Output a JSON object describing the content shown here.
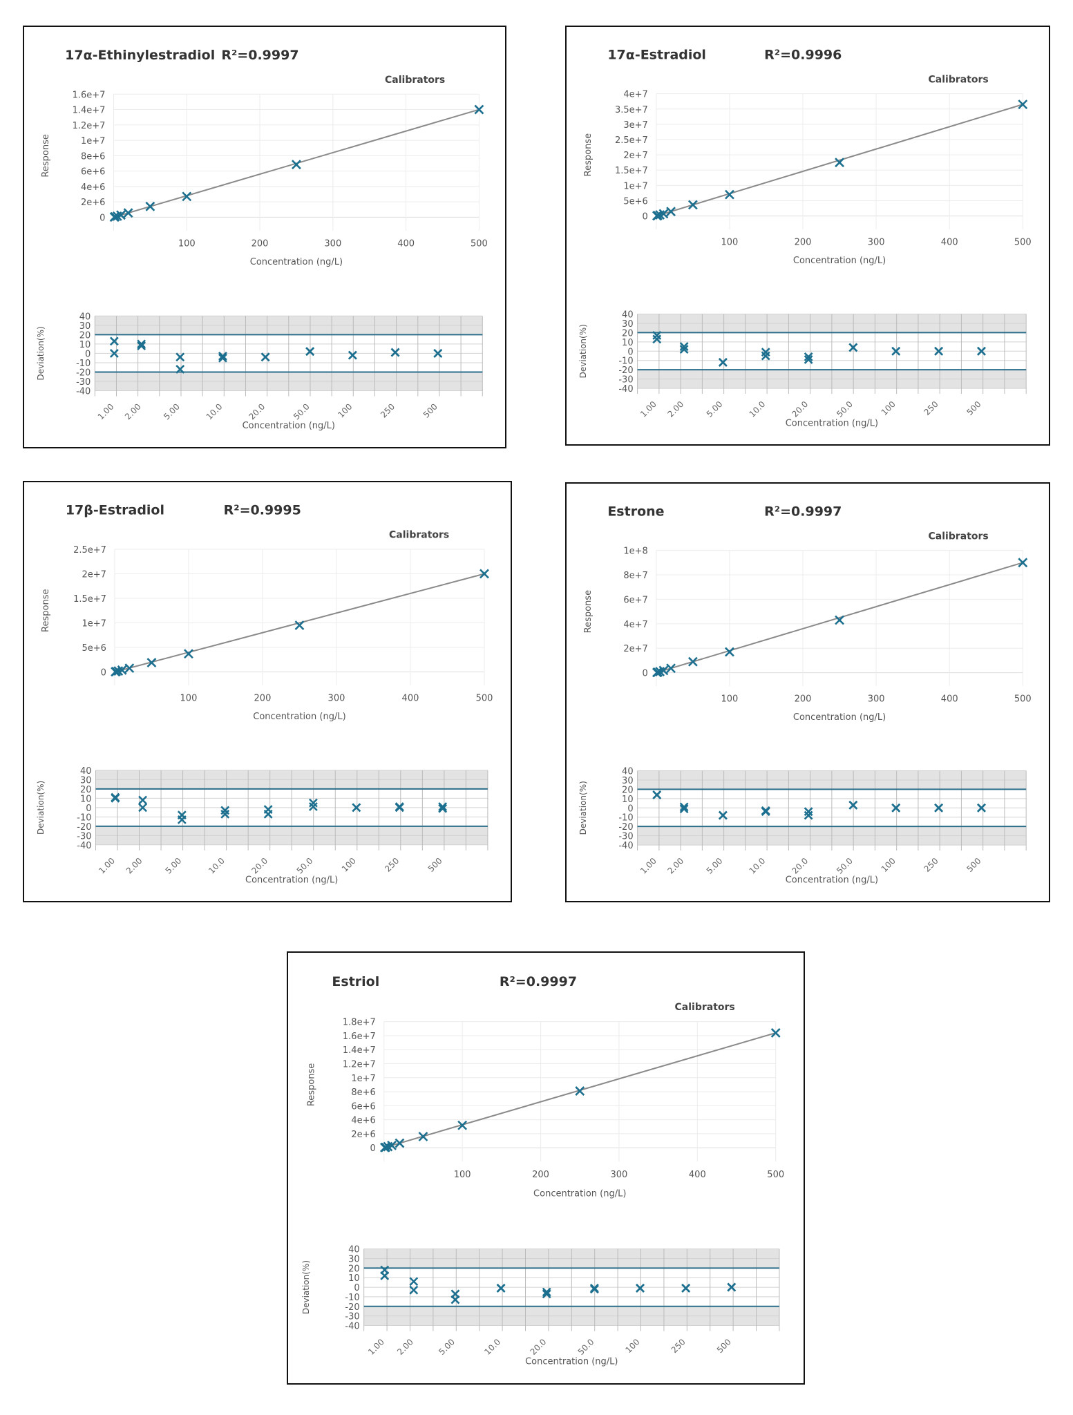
{
  "colors": {
    "marker": "#1c6f8f",
    "fit_line": "#8a8a8a",
    "limit_line": "#2b6e8a",
    "shade": "#e3e3e3",
    "grid": "#ececec"
  },
  "chart_data": [
    {
      "type": "scatter",
      "title": "17α-Ethinylestradiol",
      "r2": "R²=0.9997",
      "legend": "Calibrators",
      "ylabel": "Response",
      "xlabel": "Concentration (ng/L)",
      "ylim": [
        0,
        16000000
      ],
      "yticks": [
        "0",
        "2e+6",
        "4e+6",
        "6e+6",
        "8e+6",
        "1e+7",
        "1.2e+7",
        "1.4e+7",
        "1.6e+7"
      ],
      "xlim": [
        0,
        500
      ],
      "xticks": [
        "100",
        "200",
        "300",
        "400",
        "500"
      ],
      "x": [
        1,
        2,
        5,
        10,
        20,
        50,
        100,
        250,
        500
      ],
      "y": [
        28000,
        56000,
        140000,
        280000,
        560000,
        1400000,
        2700000,
        6850000,
        14000000
      ],
      "deviation": {
        "ylabel": "Deviation(%)",
        "xlabel": "Concentration (ng/L)",
        "ylim": [
          -40,
          40
        ],
        "yticks": [
          "40",
          "30",
          "20",
          "10",
          "0",
          "-10",
          "-20",
          "-30",
          "-40"
        ],
        "limits": [
          20,
          -20
        ],
        "categories": [
          "1.00",
          "2.00",
          "5.00",
          "10.0",
          "20.0",
          "50.0",
          "100",
          "250",
          "500"
        ],
        "values": [
          [
            13,
            0
          ],
          [
            10,
            8
          ],
          [
            -4,
            -17
          ],
          [
            -3,
            -5
          ],
          [
            -4,
            -4
          ],
          [
            2,
            2
          ],
          [
            -2,
            -2
          ],
          [
            1,
            1
          ],
          [
            0,
            0
          ]
        ]
      }
    },
    {
      "type": "scatter",
      "title": "17α-Estradiol",
      "r2": "R²=0.9996",
      "legend": "Calibrators",
      "ylabel": "Response",
      "xlabel": "Concentration (ng/L)",
      "ylim": [
        0,
        40000000
      ],
      "yticks": [
        "0",
        "5e+6",
        "1e+7",
        "1.5e+7",
        "2e+7",
        "2.5e+7",
        "3e+7",
        "3.5e+7",
        "4e+7"
      ],
      "xlim": [
        0,
        500
      ],
      "xticks": [
        "100",
        "200",
        "300",
        "400",
        "500"
      ],
      "x": [
        1,
        2,
        5,
        10,
        20,
        50,
        100,
        250,
        500
      ],
      "y": [
        73000,
        146000,
        365000,
        730000,
        1460000,
        3650000,
        7000000,
        17500000,
        36500000
      ],
      "deviation": {
        "ylabel": "Deviation(%)",
        "xlabel": "Concentration (ng/L)",
        "ylim": [
          -40,
          40
        ],
        "yticks": [
          "40",
          "30",
          "20",
          "10",
          "0",
          "-10",
          "-20",
          "-30",
          "-40"
        ],
        "limits": [
          20,
          -20
        ],
        "categories": [
          "1.00",
          "2.00",
          "5.00",
          "10.0",
          "20.0",
          "50.0",
          "100",
          "250",
          "500"
        ],
        "values": [
          [
            17,
            13
          ],
          [
            5,
            2
          ],
          [
            -12,
            -12
          ],
          [
            -1,
            -5
          ],
          [
            -6,
            -9
          ],
          [
            4,
            4
          ],
          [
            0,
            0
          ],
          [
            0,
            0
          ],
          [
            0,
            0
          ]
        ]
      }
    },
    {
      "type": "scatter",
      "title": "17β-Estradiol",
      "r2": "R²=0.9995",
      "legend": "Calibrators",
      "ylabel": "Response",
      "xlabel": "Concentration (ng/L)",
      "ylim": [
        0,
        25000000
      ],
      "yticks": [
        "0",
        "5e+6",
        "1e+7",
        "1.5e+7",
        "2e+7",
        "2.5e+7"
      ],
      "xlim": [
        0,
        500
      ],
      "xticks": [
        "100",
        "200",
        "300",
        "400",
        "500"
      ],
      "x": [
        1,
        2,
        5,
        10,
        20,
        50,
        100,
        250,
        500
      ],
      "y": [
        38000,
        76000,
        190000,
        380000,
        760000,
        1900000,
        3700000,
        9500000,
        20000000
      ],
      "deviation": {
        "ylabel": "Deviation(%)",
        "xlabel": "Concentration (ng/L)",
        "ylim": [
          -40,
          40
        ],
        "yticks": [
          "40",
          "30",
          "20",
          "10",
          "0",
          "-10",
          "-20",
          "-30",
          "-40"
        ],
        "limits": [
          20,
          -20
        ],
        "categories": [
          "1.00",
          "2.00",
          "5.00",
          "10.0",
          "20.0",
          "50.0",
          "100",
          "250",
          "500"
        ],
        "values": [
          [
            11,
            10
          ],
          [
            8,
            0
          ],
          [
            -8,
            -13
          ],
          [
            -3,
            -7
          ],
          [
            -2,
            -7
          ],
          [
            5,
            1
          ],
          [
            0,
            0
          ],
          [
            1,
            0
          ],
          [
            1,
            -1
          ]
        ]
      }
    },
    {
      "type": "scatter",
      "title": "Estrone",
      "r2": "R²=0.9997",
      "legend": "Calibrators",
      "ylabel": "Response",
      "xlabel": "Concentration (ng/L)",
      "ylim": [
        0,
        100000000
      ],
      "yticks": [
        "0",
        "2e+7",
        "4e+7",
        "6e+7",
        "8e+7",
        "1e+8"
      ],
      "xlim": [
        0,
        500
      ],
      "xticks": [
        "100",
        "200",
        "300",
        "400",
        "500"
      ],
      "x": [
        1,
        2,
        5,
        10,
        20,
        50,
        100,
        250,
        500
      ],
      "y": [
        180000,
        360000,
        900000,
        1800000,
        3600000,
        9000000,
        17000000,
        43000000,
        90000000
      ],
      "deviation": {
        "ylabel": "Deviation(%)",
        "xlabel": "Concentration (ng/L)",
        "ylim": [
          -40,
          40
        ],
        "yticks": [
          "40",
          "30",
          "20",
          "10",
          "0",
          "-10",
          "-20",
          "-30",
          "-40"
        ],
        "limits": [
          20,
          -20
        ],
        "categories": [
          "1.00",
          "2.00",
          "5.00",
          "10.0",
          "20.0",
          "50.0",
          "100",
          "250",
          "500"
        ],
        "values": [
          [
            14,
            14
          ],
          [
            1,
            -1
          ],
          [
            -8,
            -8
          ],
          [
            -3,
            -4
          ],
          [
            -4,
            -8
          ],
          [
            3,
            3
          ],
          [
            0,
            0
          ],
          [
            0,
            0
          ],
          [
            0,
            0
          ]
        ]
      }
    },
    {
      "type": "scatter",
      "title": "Estriol",
      "r2": "R²=0.9997",
      "legend": "Calibrators",
      "ylabel": "Response",
      "xlabel": "Concentration (ng/L)",
      "ylim": [
        0,
        18000000
      ],
      "yticks": [
        "0",
        "2e+6",
        "4e+6",
        "6e+6",
        "8e+6",
        "1e+7",
        "1.2e+7",
        "1.4e+7",
        "1.6e+7",
        "1.8e+7"
      ],
      "xlim": [
        0,
        500
      ],
      "xticks": [
        "100",
        "200",
        "300",
        "400",
        "500"
      ],
      "x": [
        1,
        2,
        5,
        10,
        20,
        50,
        100,
        250,
        500
      ],
      "y": [
        33000,
        66000,
        165000,
        330000,
        660000,
        1600000,
        3200000,
        8100000,
        16400000
      ],
      "deviation": {
        "ylabel": "Deviation(%)",
        "xlabel": "Concentration (ng/L)",
        "ylim": [
          -40,
          40
        ],
        "yticks": [
          "40",
          "30",
          "20",
          "10",
          "0",
          "-10",
          "-20",
          "-30",
          "-40"
        ],
        "limits": [
          20,
          -20
        ],
        "categories": [
          "1.00",
          "2.00",
          "5.00",
          "10.0",
          "20.0",
          "50.0",
          "100",
          "250",
          "500"
        ],
        "values": [
          [
            18,
            12
          ],
          [
            6,
            -3
          ],
          [
            -7,
            -13
          ],
          [
            -1,
            -1
          ],
          [
            -5,
            -7
          ],
          [
            -1,
            -2
          ],
          [
            -1,
            -1
          ],
          [
            -1,
            -1
          ],
          [
            0,
            0
          ]
        ]
      }
    }
  ]
}
